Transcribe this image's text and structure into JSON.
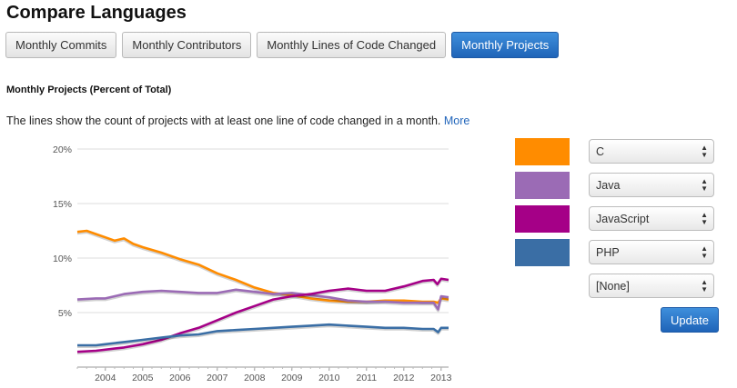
{
  "page": {
    "title": "Compare Languages"
  },
  "tabs": [
    {
      "label": "Monthly Commits",
      "active": false
    },
    {
      "label": "Monthly Contributors",
      "active": false
    },
    {
      "label": "Monthly Lines of Code Changed",
      "active": false
    },
    {
      "label": "Monthly Projects",
      "active": true
    }
  ],
  "section": {
    "title": "Monthly Projects (Percent of Total)",
    "description": "The lines show the count of projects with at least one line of code changed in a month.",
    "more_link": "More"
  },
  "legend": [
    {
      "color": "#ff8c00",
      "selected": "C"
    },
    {
      "color": "#9b6bb5",
      "selected": "Java"
    },
    {
      "color": "#a50087",
      "selected": "JavaScript"
    },
    {
      "color": "#3a6ea5",
      "selected": "PHP"
    },
    {
      "color": "",
      "selected": "[None]"
    }
  ],
  "update_button": "Update",
  "chart_data": {
    "type": "line",
    "title": "",
    "xlabel": "",
    "ylabel": "",
    "y_unit": "%",
    "ylim": [
      0,
      20
    ],
    "xlim": [
      2003.25,
      2013.2
    ],
    "y_ticks": [
      "5%",
      "10%",
      "15%",
      "20%"
    ],
    "x_ticks": [
      "2004",
      "2005",
      "2006",
      "2007",
      "2008",
      "2009",
      "2010",
      "2011",
      "2012",
      "2013"
    ],
    "grid": true,
    "series": [
      {
        "name": "C",
        "color": "#ff8c00",
        "points": [
          [
            2003.25,
            12.4
          ],
          [
            2003.5,
            12.5
          ],
          [
            2003.75,
            12.2
          ],
          [
            2004.0,
            11.9
          ],
          [
            2004.25,
            11.6
          ],
          [
            2004.5,
            11.8
          ],
          [
            2004.75,
            11.3
          ],
          [
            2005.0,
            11.0
          ],
          [
            2005.5,
            10.5
          ],
          [
            2006.0,
            9.9
          ],
          [
            2006.5,
            9.4
          ],
          [
            2007.0,
            8.6
          ],
          [
            2007.5,
            8.0
          ],
          [
            2008.0,
            7.3
          ],
          [
            2008.5,
            6.8
          ],
          [
            2009.0,
            6.6
          ],
          [
            2009.5,
            6.3
          ],
          [
            2010.0,
            6.1
          ],
          [
            2010.5,
            6.0
          ],
          [
            2011.0,
            6.0
          ],
          [
            2011.5,
            6.1
          ],
          [
            2012.0,
            6.1
          ],
          [
            2012.5,
            6.0
          ],
          [
            2012.8,
            6.0
          ],
          [
            2012.92,
            5.9
          ],
          [
            2013.0,
            6.3
          ],
          [
            2013.2,
            6.2
          ]
        ]
      },
      {
        "name": "Java",
        "color": "#9b6bb5",
        "points": [
          [
            2003.25,
            6.2
          ],
          [
            2003.75,
            6.3
          ],
          [
            2004.0,
            6.3
          ],
          [
            2004.5,
            6.7
          ],
          [
            2005.0,
            6.9
          ],
          [
            2005.5,
            7.0
          ],
          [
            2006.0,
            6.9
          ],
          [
            2006.5,
            6.8
          ],
          [
            2007.0,
            6.8
          ],
          [
            2007.5,
            7.1
          ],
          [
            2008.0,
            6.9
          ],
          [
            2008.5,
            6.7
          ],
          [
            2009.0,
            6.8
          ],
          [
            2009.5,
            6.6
          ],
          [
            2010.0,
            6.4
          ],
          [
            2010.5,
            6.1
          ],
          [
            2011.0,
            6.0
          ],
          [
            2011.5,
            6.0
          ],
          [
            2012.0,
            5.9
          ],
          [
            2012.5,
            5.9
          ],
          [
            2012.8,
            5.9
          ],
          [
            2012.92,
            5.3
          ],
          [
            2013.0,
            6.5
          ],
          [
            2013.2,
            6.4
          ]
        ]
      },
      {
        "name": "JavaScript",
        "color": "#a50087",
        "points": [
          [
            2003.25,
            1.4
          ],
          [
            2003.75,
            1.5
          ],
          [
            2004.5,
            1.8
          ],
          [
            2005.0,
            2.1
          ],
          [
            2005.5,
            2.5
          ],
          [
            2006.0,
            3.1
          ],
          [
            2006.5,
            3.6
          ],
          [
            2007.0,
            4.3
          ],
          [
            2007.5,
            5.0
          ],
          [
            2008.0,
            5.6
          ],
          [
            2008.5,
            6.2
          ],
          [
            2009.0,
            6.5
          ],
          [
            2009.5,
            6.7
          ],
          [
            2010.0,
            7.0
          ],
          [
            2010.5,
            7.2
          ],
          [
            2011.0,
            7.0
          ],
          [
            2011.5,
            7.0
          ],
          [
            2012.0,
            7.4
          ],
          [
            2012.5,
            7.9
          ],
          [
            2012.8,
            8.0
          ],
          [
            2012.9,
            7.6
          ],
          [
            2013.0,
            8.1
          ],
          [
            2013.2,
            8.0
          ]
        ]
      },
      {
        "name": "PHP",
        "color": "#3a6ea5",
        "points": [
          [
            2003.25,
            2.0
          ],
          [
            2003.75,
            2.0
          ],
          [
            2004.0,
            2.1
          ],
          [
            2004.5,
            2.3
          ],
          [
            2005.0,
            2.5
          ],
          [
            2005.5,
            2.7
          ],
          [
            2006.0,
            2.9
          ],
          [
            2006.5,
            3.0
          ],
          [
            2007.0,
            3.3
          ],
          [
            2007.5,
            3.4
          ],
          [
            2008.0,
            3.5
          ],
          [
            2008.5,
            3.6
          ],
          [
            2009.0,
            3.7
          ],
          [
            2009.5,
            3.8
          ],
          [
            2010.0,
            3.9
          ],
          [
            2010.5,
            3.8
          ],
          [
            2011.0,
            3.7
          ],
          [
            2011.5,
            3.6
          ],
          [
            2012.0,
            3.6
          ],
          [
            2012.5,
            3.5
          ],
          [
            2012.8,
            3.5
          ],
          [
            2012.92,
            3.2
          ],
          [
            2013.0,
            3.6
          ],
          [
            2013.2,
            3.6
          ]
        ]
      }
    ]
  }
}
